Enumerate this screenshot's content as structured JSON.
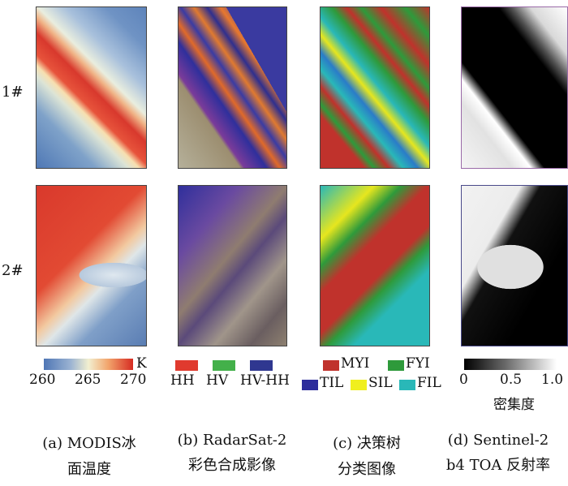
{
  "rows": [
    "1#",
    "2#"
  ],
  "panels": {
    "modis": {
      "top_colors": [
        "#5b7fb4",
        "#e2e6d5",
        "#d8392d"
      ],
      "bottom_colors": [
        "#d9392c",
        "#f2c9a0",
        "#5a7db3"
      ]
    },
    "radar": {
      "colors": [
        "#2f2f9c",
        "#e06a2a",
        "#9b8a74"
      ]
    },
    "tree": {
      "colors": [
        "#c0322c",
        "#29b8b8",
        "#e6e61e",
        "#2e9a3b",
        "#2d2d9c"
      ]
    },
    "sentinel": {
      "colors": [
        "#000000",
        "#f4f4f4"
      ]
    }
  },
  "legend_a": {
    "ticks": [
      "260",
      "265",
      "270"
    ],
    "unit": "K",
    "colors": [
      "#4f76b5",
      "#f2efd0",
      "#d62b22"
    ]
  },
  "legend_b": {
    "items": [
      {
        "label": "HH",
        "color": "#e03a2e"
      },
      {
        "label": "HV",
        "color": "#43b04a"
      },
      {
        "label": "HV-HH",
        "color": "#2f3790"
      }
    ]
  },
  "legend_c": {
    "items": [
      {
        "label": "MYI",
        "color": "#c0322c"
      },
      {
        "label": "FYI",
        "color": "#2e9a3b"
      },
      {
        "label": "TIL",
        "color": "#2d2d9c"
      },
      {
        "label": "SIL",
        "color": "#f0ef1e"
      },
      {
        "label": "FIL",
        "color": "#29b8b8"
      }
    ]
  },
  "legend_d": {
    "ticks": [
      "0",
      "0.5",
      "1.0"
    ],
    "title": "密集度"
  },
  "captions": [
    {
      "line1": "(a) MODIS冰",
      "line2": "面温度"
    },
    {
      "line1": "(b) RadarSat-2",
      "line2": "彩色合成影像"
    },
    {
      "line1": "(c) 决策树",
      "line2": "分类图像"
    },
    {
      "line1": "(d) Sentinel-2",
      "line2": "b4 TOA 反射率"
    }
  ]
}
